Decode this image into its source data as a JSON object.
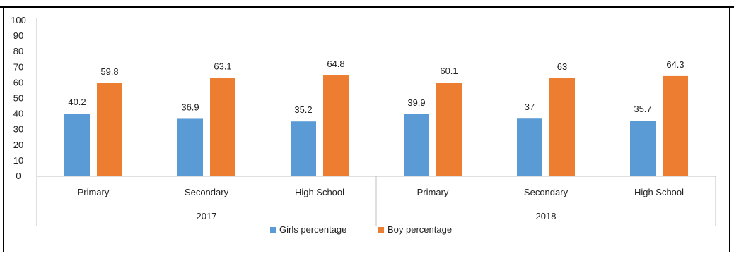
{
  "chart_data": {
    "type": "bar",
    "ylim": [
      0,
      100
    ],
    "yticks": [
      0,
      10,
      20,
      30,
      40,
      50,
      60,
      70,
      80,
      90,
      100
    ],
    "groups": [
      {
        "label": "2017",
        "categories": [
          "Primary",
          "Secondary",
          "High School"
        ]
      },
      {
        "label": "2018",
        "categories": [
          "Primary",
          "Secondary",
          "High School"
        ]
      }
    ],
    "series": [
      {
        "name": "Girls percentage",
        "color": "#5b9bd5",
        "values": [
          40.2,
          36.9,
          35.2,
          39.9,
          37,
          35.7
        ],
        "labels": [
          "40.2",
          "36.9",
          "35.2",
          "39.9",
          "37",
          "35.7"
        ]
      },
      {
        "name": "Boy percentage",
        "color": "#ed7d31",
        "values": [
          59.8,
          63.1,
          64.8,
          60.1,
          63,
          64.3
        ],
        "labels": [
          "59.8",
          "63.1",
          "64.8",
          "60.1",
          "63",
          "64.3"
        ]
      }
    ],
    "legend_position": "bottom",
    "grid": false
  }
}
